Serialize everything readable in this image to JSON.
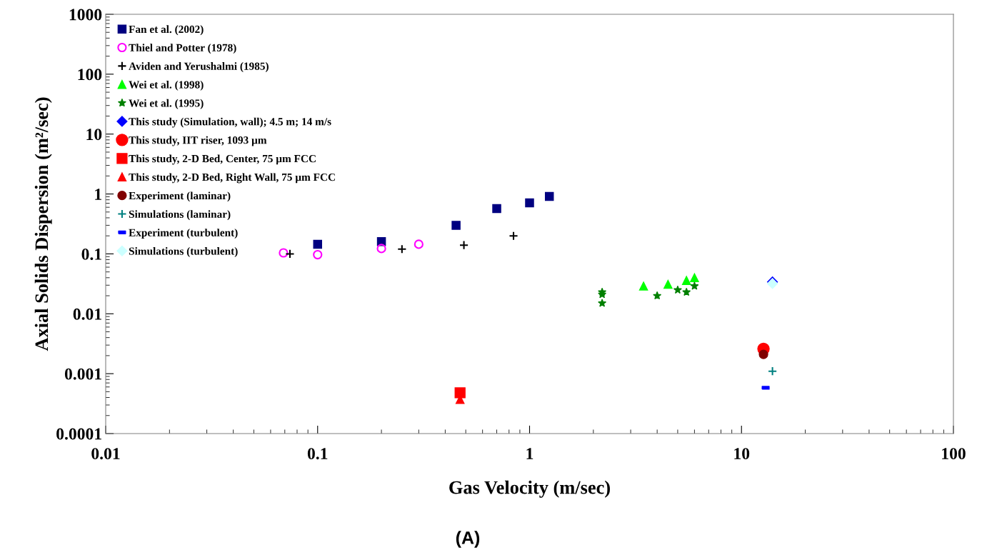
{
  "chart_data": {
    "type": "scatter",
    "xlabel": "Gas Velocity (m/sec)",
    "ylabel": "Axial Solids Dispersion (m²/sec)",
    "log": "xy",
    "grid": false,
    "legend": "top left",
    "xlim": [
      0.01,
      100
    ],
    "xticks": [
      0.01,
      0.1,
      1,
      10,
      100
    ],
    "ylim": [
      0.0001,
      1000
    ],
    "yticks": [
      0.0001,
      0.001,
      0.01,
      0.1,
      1,
      10,
      100,
      1000
    ],
    "series": [
      {
        "name": "Fan et al. (2002)",
        "color": "#000080",
        "marker": "square",
        "x": [
          0.1,
          0.2,
          0.45,
          0.7,
          1.0,
          1.24
        ],
        "values": [
          0.145,
          0.16,
          0.3,
          0.57,
          0.71,
          0.91
        ]
      },
      {
        "name": "Thiel and Potter (1978)",
        "color": "#ff00ff",
        "marker": "circle",
        "x": [
          0.069,
          0.1,
          0.2,
          0.3
        ],
        "values": [
          0.104,
          0.097,
          0.123,
          0.145
        ]
      },
      {
        "name": "Aviden and Yerushalmi (1985)",
        "color": "#000000",
        "marker": "cross",
        "x": [
          0.074,
          0.25,
          0.49,
          0.84
        ],
        "values": [
          0.1,
          0.12,
          0.14,
          0.2
        ]
      },
      {
        "name": "Wei et al. (1998)",
        "color": "#00ff00",
        "marker": "triangle",
        "x": [
          3.45,
          4.5,
          5.5,
          6.0
        ],
        "values": [
          0.029,
          0.031,
          0.036,
          0.04
        ]
      },
      {
        "name": "Wei et al. (1995)",
        "color": "#008000",
        "marker": "star",
        "x": [
          2.2,
          2.2,
          2.2,
          4.0,
          5.0,
          5.5,
          6.0
        ],
        "values": [
          0.023,
          0.021,
          0.015,
          0.02,
          0.025,
          0.023,
          0.029
        ]
      },
      {
        "name": "This study (Simulation, wall); 4.5 m; 14 m/s",
        "color": "#0000ff",
        "marker": "diamond",
        "x": [
          14
        ],
        "values": [
          0.034
        ]
      },
      {
        "name": "This study, IIT riser, 1093 µm",
        "color": "#ff0000",
        "marker": "circle",
        "x": [
          12.7
        ],
        "values": [
          0.0026
        ]
      },
      {
        "name": "This study, 2-D Bed, Center, 75 µm FCC",
        "color": "#ff0000",
        "marker": "square",
        "x": [
          0.47
        ],
        "values": [
          0.00048
        ]
      },
      {
        "name": "This study, 2-D Bed, Right Wall, 75 µm FCC",
        "color": "#ff0000",
        "marker": "triangle",
        "x": [
          0.47
        ],
        "values": [
          0.00037
        ]
      },
      {
        "name": "Experiment (laminar)",
        "color": "#800000",
        "marker": "circle",
        "x": [
          12.7
        ],
        "values": [
          0.0021
        ]
      },
      {
        "name": "Simulations (laminar)",
        "color": "#008080",
        "marker": "cross",
        "x": [
          14
        ],
        "values": [
          0.0011
        ]
      },
      {
        "name": "Experiment (turbulent)",
        "color": "#0000ff",
        "marker": "square",
        "x": [
          13
        ],
        "values": [
          0.00058
        ]
      },
      {
        "name": "Simulations (turbulent)",
        "color": "#ccffff",
        "marker": "diamond",
        "x": [
          14
        ],
        "values": [
          0.032
        ]
      }
    ],
    "annotations": [
      "(A)"
    ]
  }
}
